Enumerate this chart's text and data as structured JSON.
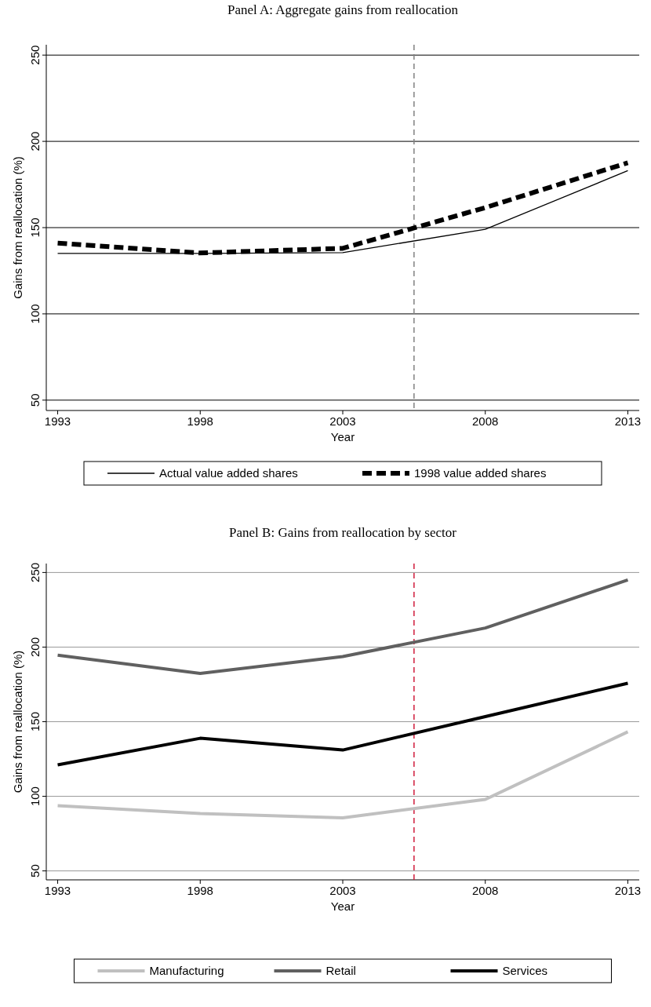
{
  "chart_data": [
    {
      "type": "line",
      "title": "Panel A: Aggregate gains from reallocation",
      "xlabel": "Year",
      "ylabel": "Gains from reallocation (%)",
      "x": [
        1993,
        1998,
        2003,
        2008,
        2013
      ],
      "xlim": [
        1992.6,
        2013.4
      ],
      "xticks": [
        1993,
        1998,
        2003,
        2008,
        2013
      ],
      "ylim": [
        44,
        256
      ],
      "yticks": [
        50,
        100,
        150,
        200,
        250
      ],
      "grid": "y",
      "legend": "bottom",
      "series": [
        {
          "name": "Actual value added shares",
          "color": "#000000",
          "line_style": "solid",
          "values": [
            135,
            135,
            135.5,
            149,
            183
          ]
        },
        {
          "name": "1998 value added shares",
          "color": "#000000",
          "line_style": "dashed",
          "values": [
            141,
            135.3,
            138,
            161.6,
            187.6
          ]
        }
      ],
      "ref_lines": [
        {
          "axis": "x",
          "value": 2005.5,
          "color": "#808080",
          "line_style": "dashed"
        }
      ]
    },
    {
      "type": "line",
      "title": "Panel B: Gains from reallocation by sector",
      "xlabel": "Year",
      "ylabel": "Gains from reallocation (%)",
      "x": [
        1993,
        1998,
        2003,
        2008,
        2013
      ],
      "xlim": [
        1992.6,
        2013.4
      ],
      "xticks": [
        1993,
        1998,
        2003,
        2008,
        2013
      ],
      "ylim": [
        44,
        256
      ],
      "yticks": [
        50,
        100,
        150,
        200,
        250
      ],
      "grid": "y",
      "legend": "bottom",
      "series": [
        {
          "name": "Manufacturing",
          "color": "#c0c0c0",
          "line_style": "solid",
          "values": [
            93.7,
            88.5,
            85.6,
            97.9,
            143.2
          ]
        },
        {
          "name": "Retail",
          "color": "#606060",
          "line_style": "solid",
          "values": [
            194.6,
            182.3,
            193.7,
            212.8,
            245
          ]
        },
        {
          "name": "Services",
          "color": "#000000",
          "line_style": "solid",
          "values": [
            121.1,
            138.9,
            131,
            153.4,
            175.8
          ]
        }
      ],
      "ref_lines": [
        {
          "axis": "x",
          "value": 2005.5,
          "color": "#d01c3c",
          "line_style": "dashed"
        }
      ]
    }
  ]
}
